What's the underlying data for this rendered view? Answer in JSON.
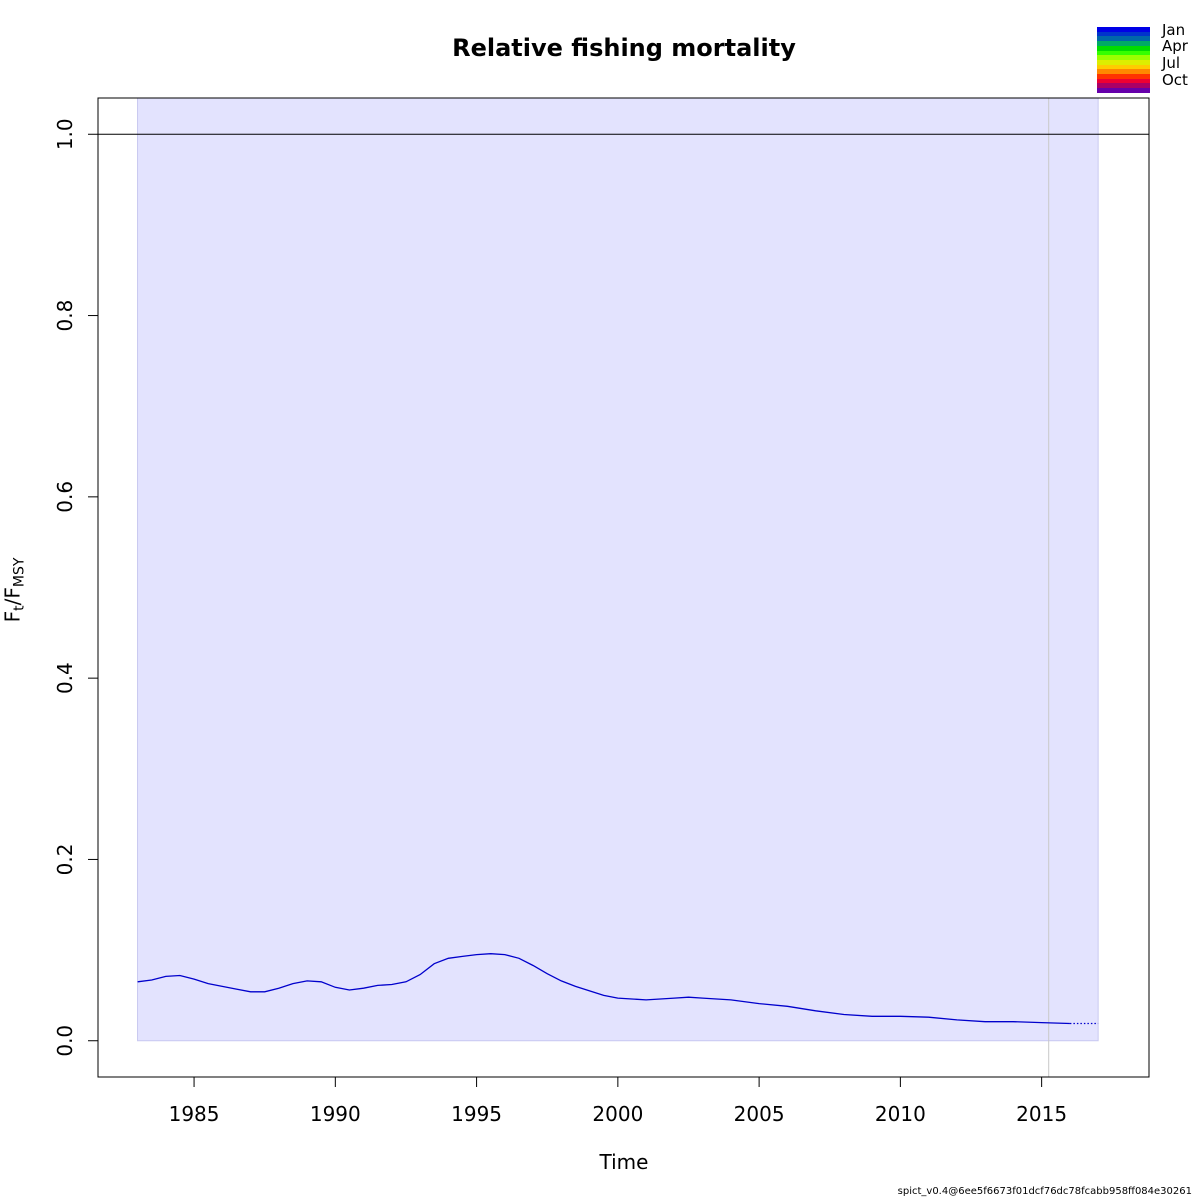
{
  "chart_data": {
    "type": "line",
    "title": "Relative fishing mortality",
    "xlabel": "Time",
    "ylabel": {
      "base": "F",
      "sub1": "t",
      "slash": "/",
      "base2": "F",
      "sub2": "MSY"
    },
    "xlim": [
      1981.6,
      2018.8
    ],
    "ylim": [
      -0.04,
      1.04
    ],
    "x_ticks": [
      1985,
      1990,
      1995,
      2000,
      2005,
      2010,
      2015
    ],
    "x_tick_labels": [
      "1985",
      "1990",
      "1995",
      "2000",
      "2005",
      "2010",
      "2015"
    ],
    "y_ticks": [
      0.0,
      0.2,
      0.4,
      0.6,
      0.8,
      1.0
    ],
    "y_tick_labels": [
      "0.0",
      "0.2",
      "0.4",
      "0.6",
      "0.8",
      "1.0"
    ],
    "reference_line": {
      "y": 1.0,
      "color": "#000000"
    },
    "vertical_line": {
      "x": 2015.25,
      "color": "#c8c8c8"
    },
    "confidence_band": {
      "x_start": 1983.0,
      "x_end": 2017.0,
      "lower": 0.0,
      "upper": 1.04,
      "color": "#e3e3fe"
    },
    "series": [
      {
        "name": "",
        "color": "#0000cc",
        "x": [
          1983.0,
          1983.5,
          1984.0,
          1984.5,
          1985.0,
          1985.5,
          1986.0,
          1986.5,
          1987.0,
          1987.5,
          1988.0,
          1988.5,
          1989.0,
          1989.5,
          1990.0,
          1990.5,
          1991.0,
          1991.5,
          1992.0,
          1992.5,
          1993.0,
          1993.5,
          1994.0,
          1994.5,
          1995.0,
          1995.5,
          1996.0,
          1996.5,
          1997.0,
          1997.5,
          1998.0,
          1998.5,
          1999.0,
          1999.5,
          2000.0,
          2001.0,
          2002.0,
          2002.5,
          2003.0,
          2004.0,
          2005.0,
          2006.0,
          2007.0,
          2008.0,
          2009.0,
          2010.0,
          2011.0,
          2012.0,
          2013.0,
          2014.0,
          2015.0,
          2016.0
        ],
        "y": [
          0.065,
          0.067,
          0.071,
          0.072,
          0.068,
          0.063,
          0.06,
          0.057,
          0.054,
          0.054,
          0.058,
          0.063,
          0.066,
          0.065,
          0.059,
          0.056,
          0.058,
          0.061,
          0.062,
          0.065,
          0.073,
          0.085,
          0.091,
          0.093,
          0.095,
          0.096,
          0.095,
          0.091,
          0.083,
          0.074,
          0.066,
          0.06,
          0.055,
          0.05,
          0.047,
          0.045,
          0.047,
          0.048,
          0.047,
          0.045,
          0.041,
          0.038,
          0.033,
          0.029,
          0.027,
          0.027,
          0.026,
          0.023,
          0.021,
          0.021,
          0.02,
          0.019
        ]
      },
      {
        "name": "",
        "color": "#0000cc",
        "dashed": true,
        "x": [
          2016.0,
          2017.0
        ],
        "y": [
          0.019,
          0.019
        ]
      }
    ],
    "legend": {
      "placement": "top-right",
      "labels": [
        "Jan",
        "Apr",
        "Jul",
        "Oct"
      ],
      "colors": [
        "#0000e6",
        "#0033cc",
        "#0066aa",
        "#00aa66",
        "#00dd00",
        "#33ff00",
        "#99ff00",
        "#ddee00",
        "#ffcc00",
        "#ff8800",
        "#ff3300",
        "#ee0033",
        "#aa0066",
        "#6600aa"
      ]
    }
  },
  "credit": "spict_v0.4@6ee5f6673f01dcf76dc78fcabb958ff084e30261"
}
